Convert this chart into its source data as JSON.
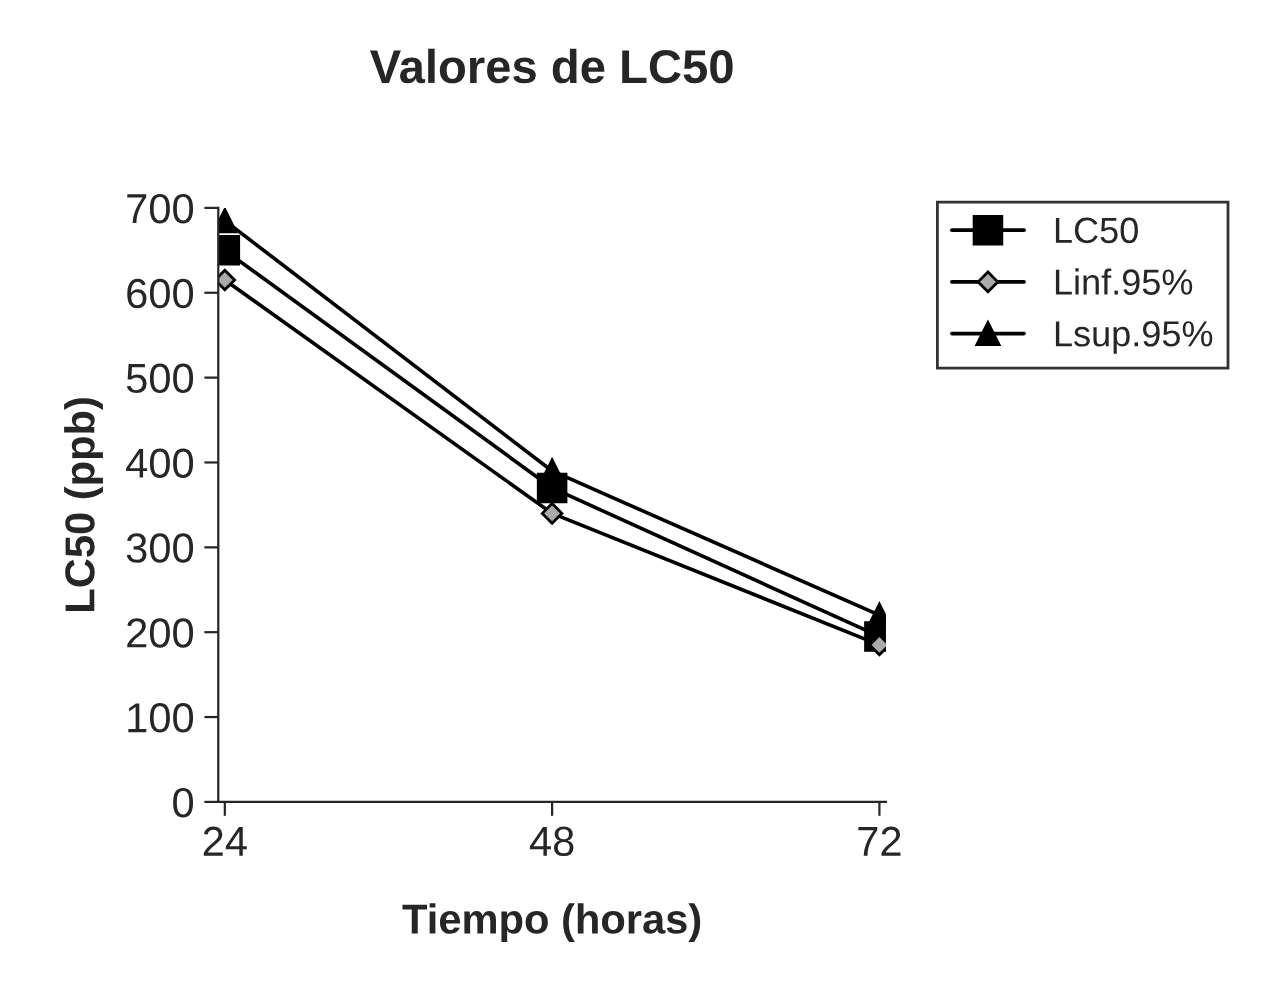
{
  "chart_data": {
    "type": "line",
    "title": "Valores de LC50",
    "xlabel": "Tiempo (horas)",
    "ylabel": "LC50 (ppb)",
    "categories": [
      "24",
      "48",
      "72"
    ],
    "series": [
      {
        "name": "LC50",
        "color": "#000000",
        "marker": "square",
        "values": [
          650,
          370,
          195
        ]
      },
      {
        "name": "Linf.95%",
        "color": "#000000",
        "marker": "diamond",
        "values": [
          615,
          340,
          185
        ]
      },
      {
        "name": "Lsup.95%",
        "color": "#000000",
        "marker": "triangle",
        "values": [
          685,
          390,
          220
        ]
      }
    ],
    "ylim": [
      0,
      700
    ],
    "yticks": [
      0,
      100,
      200,
      300,
      400,
      500,
      600,
      700
    ],
    "grid": false,
    "legend": "right"
  }
}
